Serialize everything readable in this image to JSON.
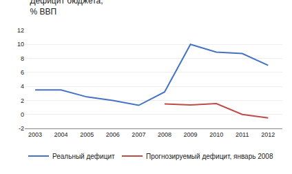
{
  "chart_data": {
    "type": "line",
    "title": "Дефицит бюджета,",
    "subtitle": "% ВВП",
    "x": [
      2003,
      2004,
      2005,
      2006,
      2007,
      2008,
      2009,
      2010,
      2011,
      2012
    ],
    "series": [
      {
        "name": "Реальный дефицит",
        "color": "#4472C4",
        "values": [
          3.5,
          3.5,
          2.5,
          2.0,
          1.3,
          3.2,
          10.0,
          8.9,
          8.7,
          7.0
        ]
      },
      {
        "name": "Прогнозируемый дефицит, январь 2008",
        "color": "#BE4B48",
        "values": [
          null,
          null,
          null,
          null,
          null,
          1.5,
          1.35,
          1.55,
          0.0,
          -0.5
        ]
      }
    ],
    "xlim": [
      2002.6,
      2012.55
    ],
    "xticks": [
      2003,
      2004,
      2005,
      2006,
      2007,
      2008,
      2009,
      2010,
      2011,
      2012
    ],
    "ylim": [
      -2,
      12
    ],
    "yticks": [
      -2,
      0,
      2,
      4,
      6,
      8,
      10,
      12
    ],
    "grid": true,
    "legend": "bottom"
  }
}
